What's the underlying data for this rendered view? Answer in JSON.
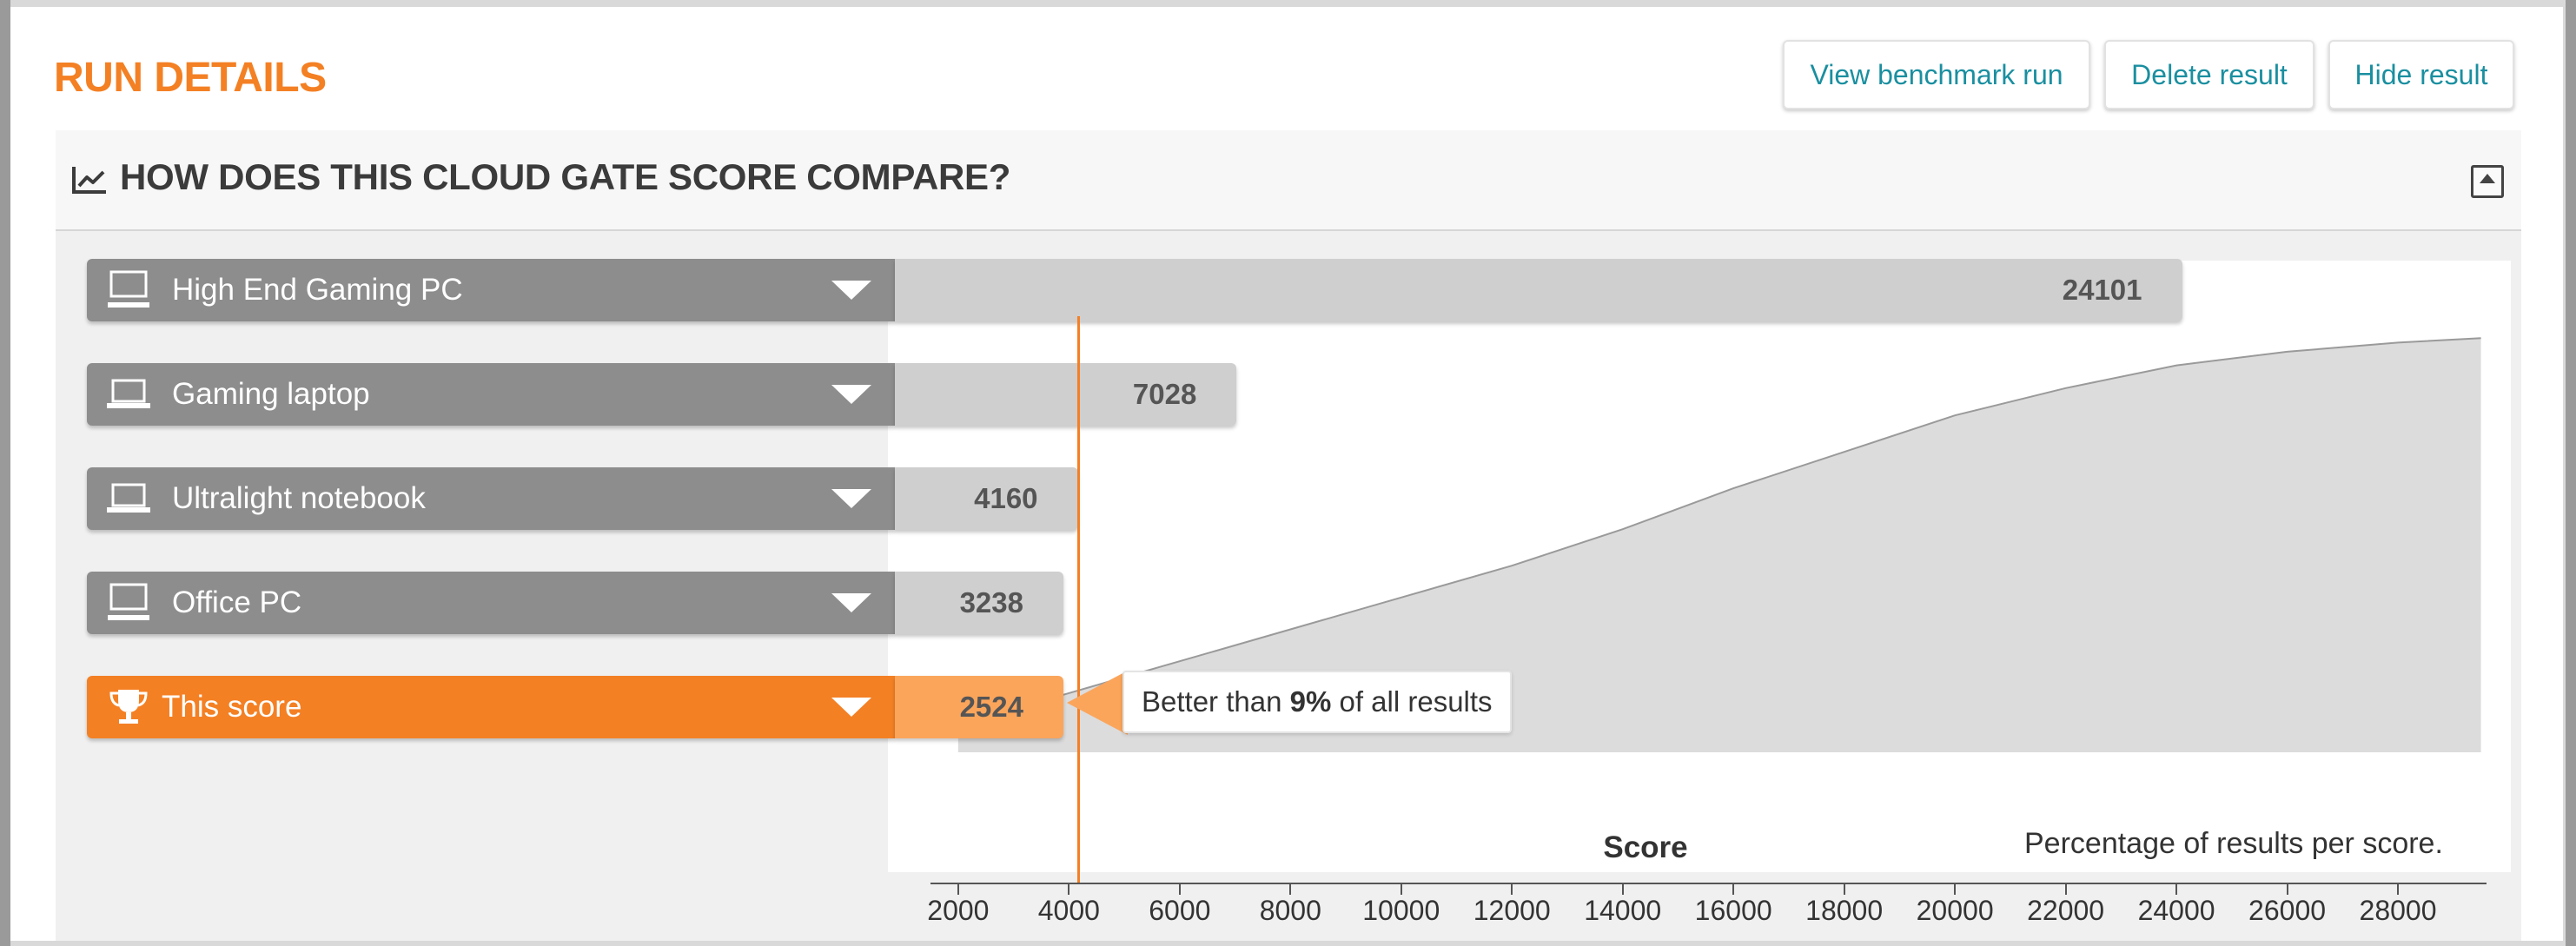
{
  "header": {
    "title": "RUN DETAILS",
    "buttons": {
      "view": "View benchmark run",
      "delete": "Delete result",
      "hide": "Hide result"
    }
  },
  "compare": {
    "title": "HOW DOES THIS CLOUD GATE SCORE COMPARE?",
    "callout": {
      "prefix": "Better than ",
      "percent": "9%",
      "suffix": " of all results"
    },
    "axis_title": "Score",
    "note": "Percentage of results per score."
  },
  "colors": {
    "accent": "#f48024",
    "link": "#1a8fa0",
    "bar": "#8d8d8d",
    "value_bar": "#cfcfcf"
  },
  "chart_data": {
    "type": "bar",
    "orientation": "horizontal",
    "categories": [
      "High End Gaming PC",
      "Gaming laptop",
      "Ultralight notebook",
      "Office PC",
      "This score"
    ],
    "values": [
      24101,
      7028,
      4160,
      3238,
      2524
    ],
    "labels": [
      "24101",
      "7028",
      "4160",
      "3238",
      "2524"
    ],
    "icons": [
      "desktop-icon",
      "laptop-icon",
      "laptop-icon",
      "desktop-icon",
      "trophy-icon"
    ],
    "highlight": "This score",
    "marker_value": 4160,
    "xlabel": "Score",
    "xlim": [
      1500,
      29600
    ],
    "x_ticks": [
      2000,
      4000,
      6000,
      8000,
      10000,
      12000,
      14000,
      16000,
      18000,
      20000,
      22000,
      24000,
      26000,
      28000
    ],
    "distribution": {
      "label": "Percentage of results per score.",
      "x": [
        2000,
        4000,
        6000,
        8000,
        10000,
        12000,
        14000,
        16000,
        18000,
        20000,
        22000,
        24000,
        26000,
        28000,
        29500
      ],
      "y": [
        6,
        13,
        20,
        27,
        34,
        41,
        49,
        58,
        66,
        74,
        80,
        85,
        88,
        90,
        91
      ]
    }
  }
}
